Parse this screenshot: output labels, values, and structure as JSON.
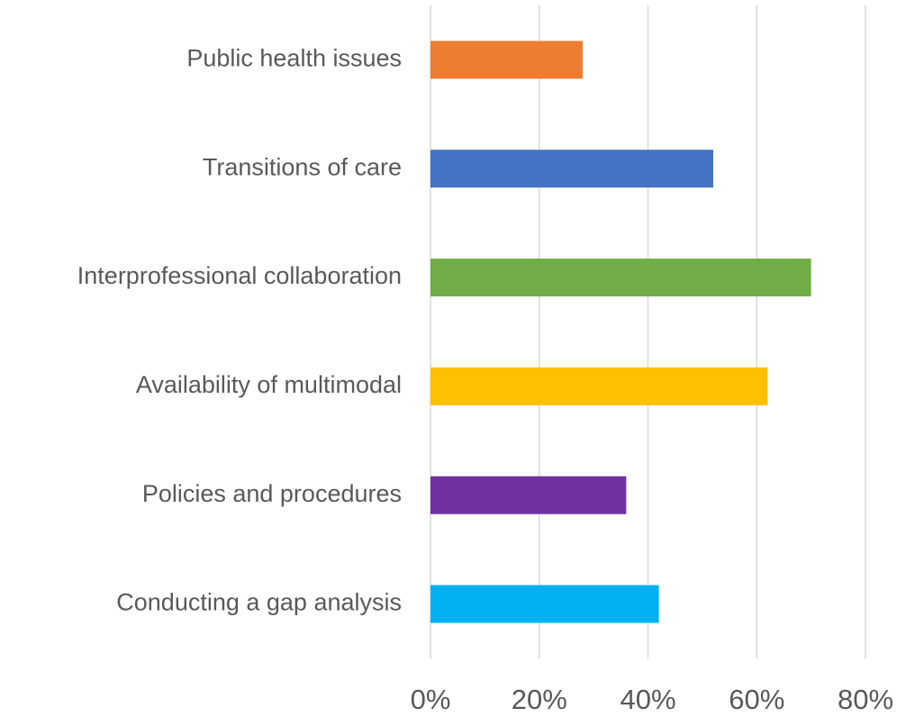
{
  "chart_data": {
    "type": "hbar",
    "categories": [
      "Public health issues",
      "Transitions of care",
      "Interprofessional collaboration",
      "Availability of multimodal",
      "Policies and procedures",
      "Conducting a gap analysis"
    ],
    "values": [
      28,
      52,
      70,
      62,
      36,
      42
    ],
    "colors": [
      "#ed7d31",
      "#4472c4",
      "#70ad47",
      "#ffc000",
      "#7030a0",
      "#00b0f0"
    ],
    "xlim": [
      0,
      80
    ],
    "xticks": [
      {
        "value": 0,
        "label": "0%"
      },
      {
        "value": 20,
        "label": "20%"
      },
      {
        "value": 40,
        "label": "40%"
      },
      {
        "value": 60,
        "label": "60%"
      },
      {
        "value": 80,
        "label": "80%"
      }
    ],
    "grid": true
  }
}
